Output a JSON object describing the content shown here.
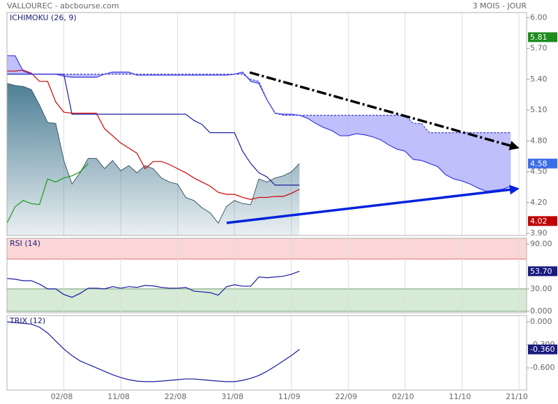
{
  "header": {
    "title": "VALLOUREC - abcbourse.com",
    "period": "3 MOIS - JOUR"
  },
  "chart_data": [
    {
      "type": "ichimoku",
      "title": "ICHIMOKU (26, 9)",
      "categories": [
        null,
        null,
        null,
        null,
        null,
        null,
        null,
        "02/08",
        null,
        null,
        null,
        null,
        null,
        null,
        "11/08",
        null,
        null,
        null,
        null,
        null,
        null,
        "22/08",
        null,
        null,
        null,
        null,
        null,
        null,
        "31/08",
        null,
        null,
        null,
        null,
        null,
        null,
        "11/09",
        null,
        null,
        null,
        null,
        null,
        null,
        "22/09",
        null,
        null,
        null,
        null,
        null,
        null,
        "02/10",
        null,
        null,
        null,
        null,
        null,
        null,
        "11/10",
        null,
        null,
        null,
        null,
        null,
        null,
        "21/10"
      ],
      "ylim": [
        3.88,
        6.05
      ],
      "yticks": [
        {
          "value": 6.0,
          "label": "6.00"
        },
        {
          "value": 5.7,
          "label": "5.70"
        },
        {
          "value": 5.4,
          "label": "5.40"
        },
        {
          "value": 5.1,
          "label": "5.10"
        },
        {
          "value": 4.8,
          "label": "4.80"
        },
        {
          "value": 4.5,
          "label": "4.50"
        },
        {
          "value": 4.2,
          "label": "4.20"
        },
        {
          "value": 3.9,
          "label": "3.90"
        }
      ],
      "series": [
        {
          "style": "area",
          "color": "#4d7f95",
          "values": [
            5.36,
            5.34,
            5.33,
            5.3,
            5.15,
            4.98,
            4.97,
            4.61,
            4.38,
            4.49,
            4.63,
            4.63,
            4.53,
            4.61,
            4.51,
            4.56,
            4.49,
            4.56,
            4.53,
            4.44,
            4.4,
            4.38,
            4.25,
            4.22,
            4.15,
            4.1,
            4.0,
            4.16,
            4.22,
            4.19,
            4.18,
            4.43,
            4.4,
            4.44,
            4.46,
            4.5,
            4.58,
            null,
            null,
            null,
            null,
            null,
            null,
            null,
            null,
            null,
            null,
            null,
            null,
            null,
            null,
            null,
            null,
            null,
            null,
            null,
            null,
            null,
            null,
            null,
            null,
            null,
            null,
            null
          ]
        },
        {
          "style": "line",
          "color": "#1a9a1a",
          "values": [
            4.0,
            4.16,
            4.22,
            4.19,
            4.18,
            4.43,
            4.4,
            4.44,
            4.46,
            4.5,
            4.58,
            null,
            null,
            null,
            null,
            null,
            null,
            null,
            null,
            null,
            null,
            null,
            null,
            null,
            null,
            null,
            null,
            null,
            null,
            null,
            null,
            null,
            null,
            null,
            null,
            null,
            null,
            null,
            null,
            null,
            null,
            null,
            null,
            null,
            null,
            null,
            null,
            null,
            null,
            null,
            null,
            null,
            null,
            null,
            null,
            null,
            null,
            null,
            null,
            null,
            null,
            null,
            null,
            null
          ]
        },
        {
          "style": "line",
          "color": "#cc0000",
          "values": [
            5.48,
            5.48,
            5.49,
            5.46,
            5.38,
            5.38,
            5.18,
            5.08,
            5.07,
            5.07,
            5.07,
            5.07,
            4.92,
            4.85,
            4.78,
            4.73,
            4.68,
            4.53,
            4.6,
            4.6,
            4.57,
            4.53,
            4.49,
            4.44,
            4.4,
            4.36,
            4.3,
            4.28,
            4.28,
            4.25,
            4.23,
            4.25,
            4.25,
            4.26,
            4.26,
            4.29,
            4.33,
            null,
            null,
            null,
            null,
            null,
            null,
            null,
            null,
            null,
            null,
            null,
            null,
            null,
            null,
            null,
            null,
            null,
            null,
            null,
            null,
            null,
            null,
            null,
            null,
            null,
            null,
            null
          ]
        },
        {
          "style": "line",
          "color": "#1c1ca0",
          "values": [
            5.45,
            5.45,
            5.45,
            5.45,
            5.45,
            5.45,
            5.45,
            5.45,
            5.06,
            5.06,
            5.06,
            5.06,
            5.06,
            5.06,
            5.06,
            5.06,
            5.06,
            5.06,
            5.06,
            5.06,
            5.06,
            5.06,
            5.06,
            5.0,
            4.96,
            4.88,
            4.88,
            4.88,
            4.88,
            4.7,
            4.58,
            4.49,
            4.45,
            4.37,
            4.37,
            4.37,
            4.37,
            null,
            null,
            null,
            null,
            null,
            null,
            null,
            null,
            null,
            null,
            null,
            null,
            null,
            null,
            null,
            null,
            null,
            null,
            null,
            null,
            null,
            null,
            null,
            null,
            null,
            null,
            null
          ]
        },
        {
          "style": "line",
          "color": "#3a3ae0",
          "values": [
            5.63,
            5.63,
            5.48,
            5.45,
            5.45,
            5.45,
            5.45,
            5.43,
            5.42,
            5.42,
            5.42,
            5.42,
            5.45,
            5.47,
            5.47,
            5.47,
            5.44,
            5.44,
            5.44,
            5.44,
            5.44,
            5.44,
            5.44,
            5.44,
            5.44,
            5.44,
            5.44,
            5.44,
            5.45,
            5.47,
            5.38,
            5.36,
            5.2,
            5.07,
            5.06,
            5.06,
            5.05,
            5.02,
            4.97,
            4.93,
            4.9,
            4.85,
            4.85,
            4.87,
            4.86,
            4.84,
            4.81,
            4.76,
            4.72,
            4.7,
            4.62,
            4.61,
            4.58,
            4.55,
            4.47,
            4.43,
            4.41,
            4.38,
            4.34,
            4.31,
            4.32,
            4.33,
            4.36,
            null
          ]
        },
        {
          "style": "dashed",
          "color": "#3a3ae0",
          "values": [
            5.45,
            5.45,
            5.45,
            5.45,
            5.45,
            5.45,
            5.45,
            5.45,
            5.45,
            5.45,
            5.45,
            5.45,
            5.45,
            5.45,
            5.45,
            5.45,
            5.45,
            5.45,
            5.45,
            5.45,
            5.45,
            5.45,
            5.45,
            5.45,
            5.45,
            5.45,
            5.45,
            5.45,
            5.45,
            5.45,
            5.4,
            5.38,
            5.2,
            5.07,
            5.05,
            5.05,
            5.05,
            5.05,
            5.05,
            5.05,
            5.05,
            5.05,
            5.05,
            5.05,
            5.05,
            5.05,
            5.05,
            5.05,
            5.05,
            5.05,
            4.97,
            4.97,
            4.88,
            4.88,
            4.88,
            4.88,
            4.88,
            4.88,
            4.88,
            4.88,
            4.88,
            4.88,
            4.88,
            null
          ]
        }
      ],
      "fill_between": [
        4,
        5
      ],
      "fill_color": "#b4b4fa",
      "badges": [
        {
          "value": 5.81,
          "label": "5.81",
          "color": "#1e8c1e"
        },
        {
          "value": 4.58,
          "label": "4.58",
          "color": "#3a6ee8"
        },
        {
          "value": 4.02,
          "label": "4.02",
          "color": "#c00000"
        }
      ]
    },
    {
      "type": "line",
      "title": "RSI (14)",
      "ylim": [
        -2,
        98
      ],
      "yticks": [
        {
          "value": 90,
          "label": "90.00"
        },
        {
          "value": 30,
          "label": "30.00"
        },
        {
          "value": 0,
          "label": "0.000"
        }
      ],
      "bands": [
        {
          "from": 70,
          "to": 100,
          "color": "#fcd6d6",
          "edge": "#e07070"
        },
        {
          "from": 0,
          "to": 30,
          "color": "#d6ead6",
          "edge": "#70a070"
        }
      ],
      "series": [
        {
          "style": "line",
          "color": "#1a1aa0",
          "values": [
            44,
            43,
            41,
            41,
            36.5,
            30,
            30,
            22.5,
            18.7,
            24,
            31,
            31,
            30,
            33,
            31,
            33,
            32,
            34.7,
            34,
            32,
            31,
            31,
            32,
            27,
            26,
            25,
            21.6,
            32.8,
            35.6,
            33.7,
            33.7,
            46,
            45,
            46,
            47,
            49.7,
            53.7
          ]
        }
      ],
      "badges": [
        {
          "value": 53.7,
          "label": "53.70",
          "color": "#1a1a80"
        }
      ]
    },
    {
      "type": "line",
      "title": "TRIX (12)",
      "ylim": [
        -0.89,
        0.082
      ],
      "yticks": [
        {
          "value": 0,
          "label": "0.000"
        },
        {
          "value": -0.3,
          "label": "-0.300"
        },
        {
          "value": -0.6,
          "label": "-0.600"
        }
      ],
      "series": [
        {
          "style": "line",
          "color": "#1a1aa0",
          "values": [
            0,
            -0.01,
            -0.02,
            -0.03,
            -0.07,
            -0.145,
            -0.25,
            -0.355,
            -0.44,
            -0.51,
            -0.555,
            -0.6,
            -0.645,
            -0.69,
            -0.727,
            -0.755,
            -0.773,
            -0.78,
            -0.78,
            -0.773,
            -0.764,
            -0.755,
            -0.745,
            -0.745,
            -0.755,
            -0.764,
            -0.773,
            -0.78,
            -0.78,
            -0.764,
            -0.736,
            -0.7,
            -0.645,
            -0.58,
            -0.51,
            -0.44,
            -0.36
          ]
        }
      ],
      "badges": [
        {
          "value": -0.36,
          "label": "-0.360",
          "color": "#1a1a80"
        }
      ]
    }
  ]
}
